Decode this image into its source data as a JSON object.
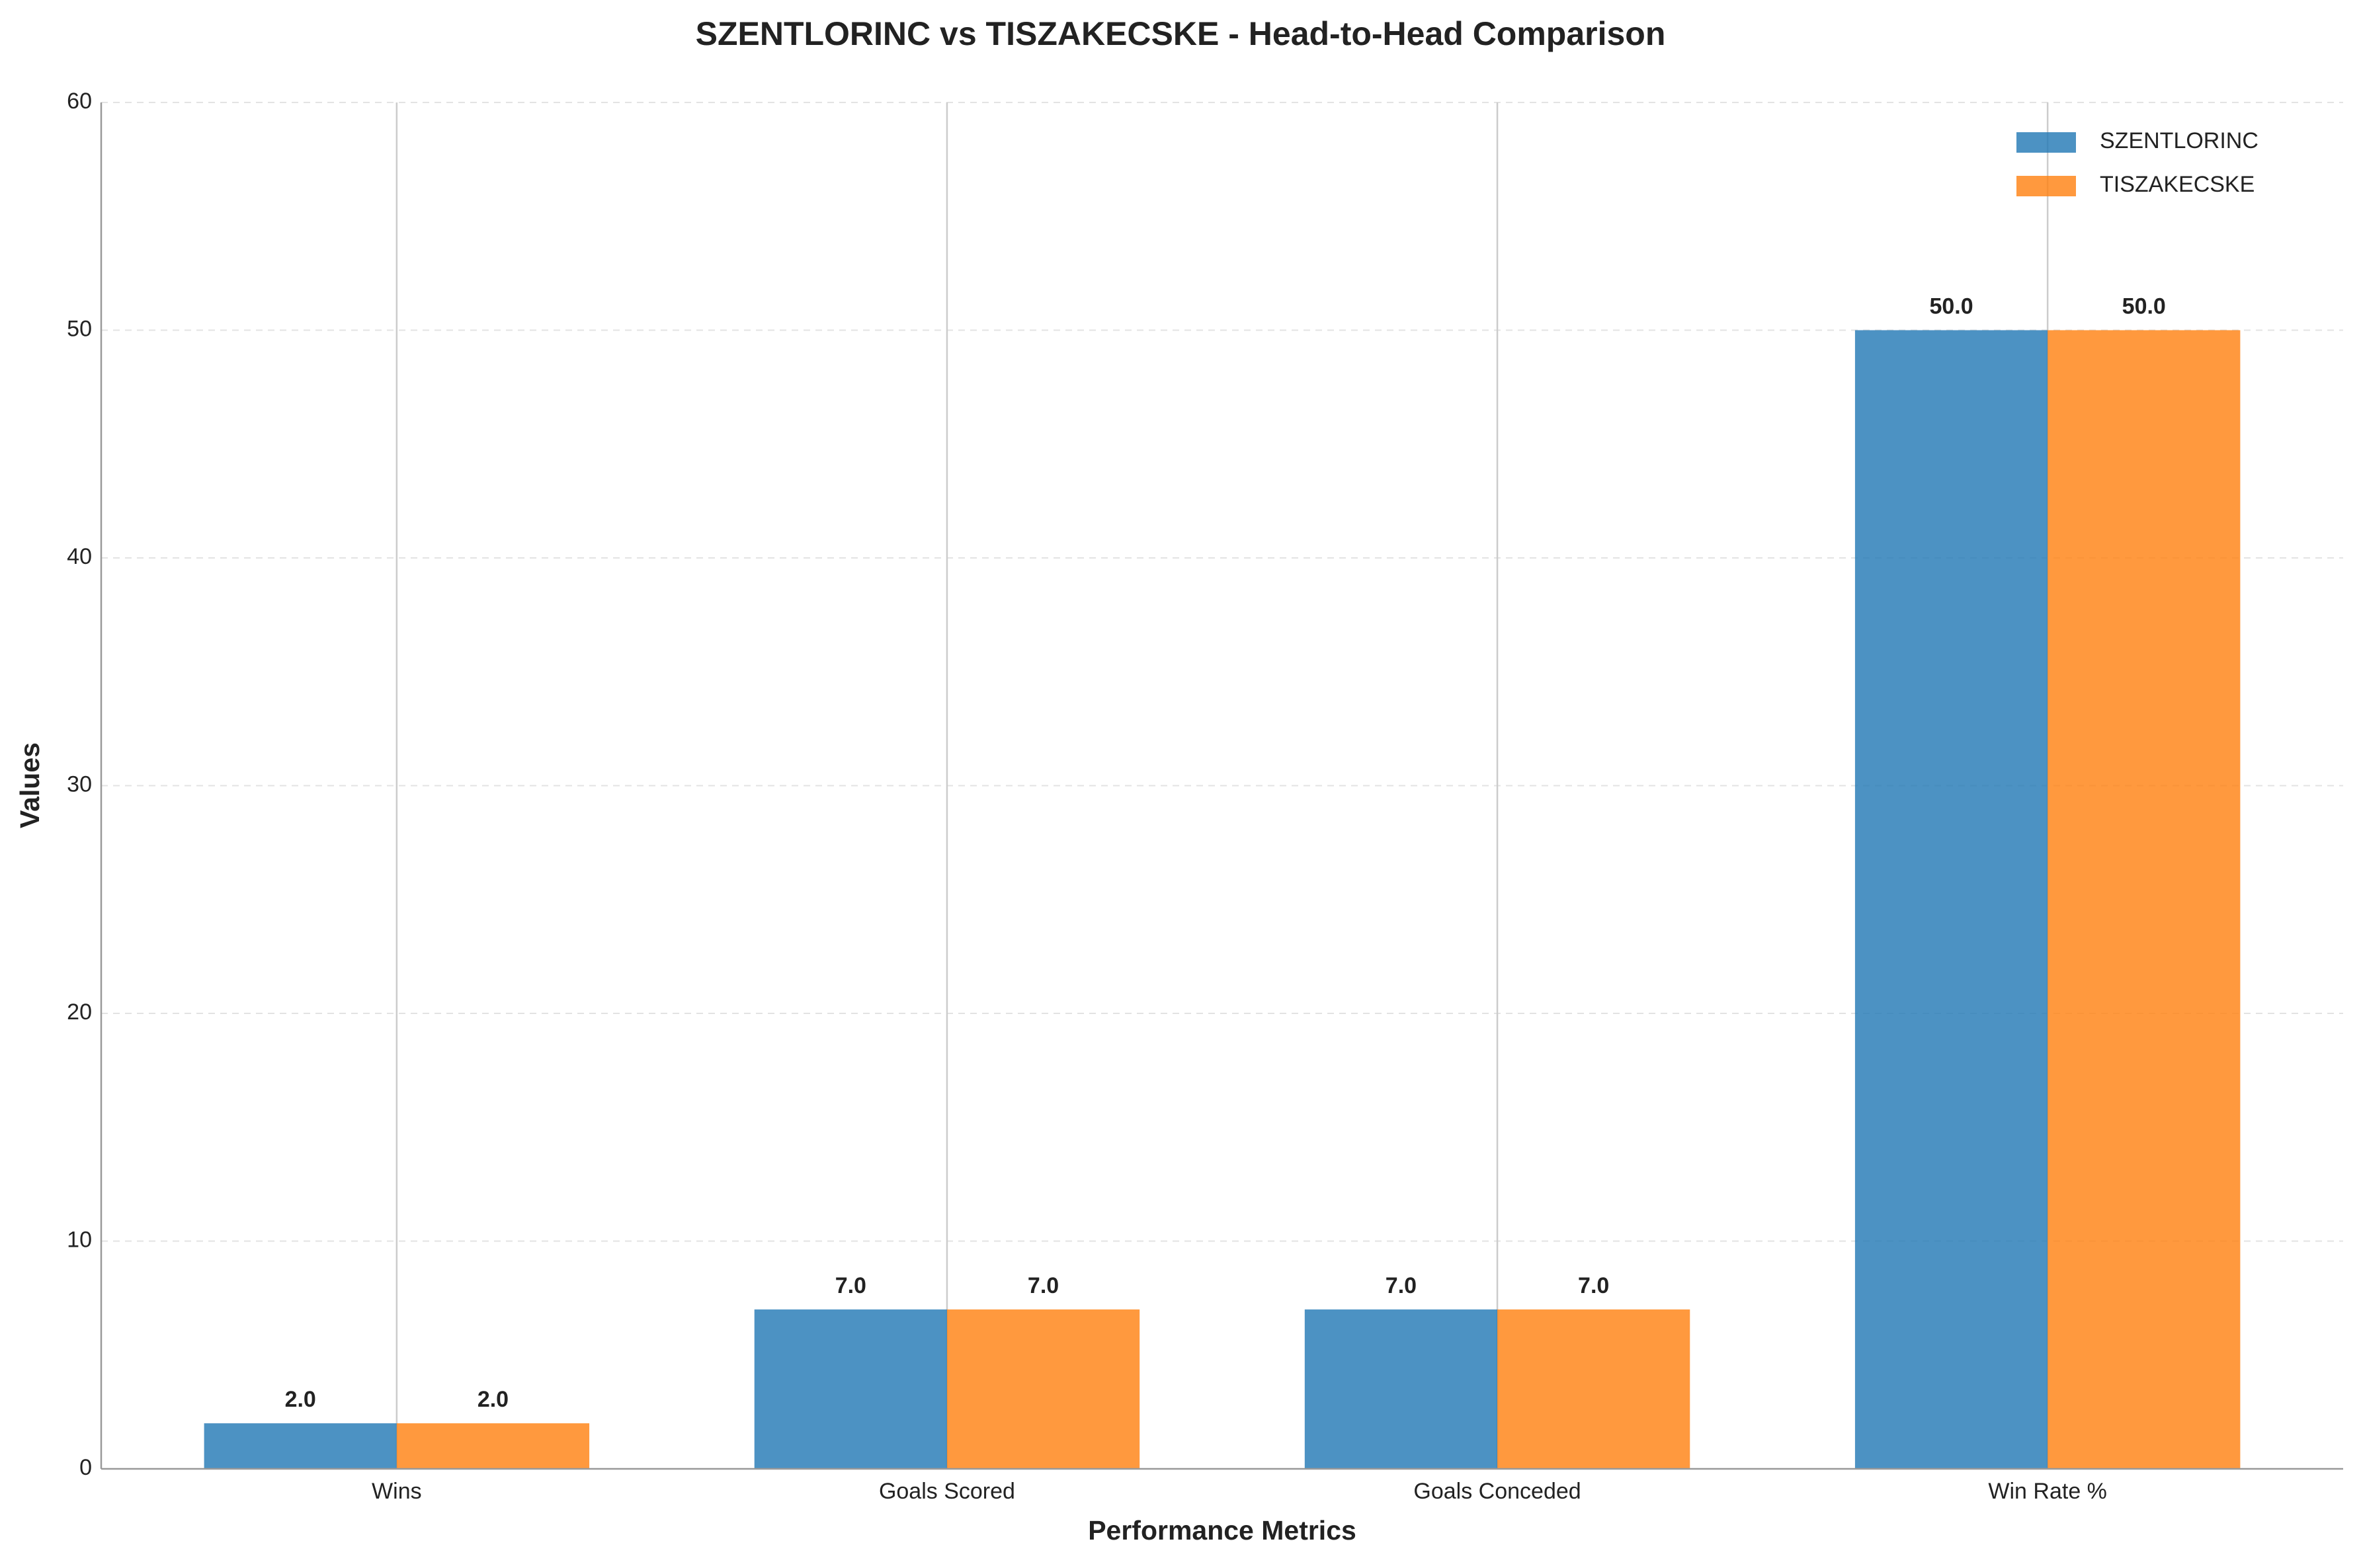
{
  "chart_data": {
    "type": "bar",
    "title": "SZENTLORINC vs TISZAKECSKE - Head-to-Head Comparison",
    "x_label": "Performance Metrics",
    "y_label": "Values",
    "categories": [
      "Wins",
      "Goals Scored",
      "Goals Conceded",
      "Win Rate %"
    ],
    "series": [
      {
        "name": "SZENTLORINC",
        "color": "#1f77b4",
        "values": [
          2,
          7,
          7,
          50
        ],
        "value_labels": [
          "2.0",
          "7.0",
          "7.0",
          "50.0"
        ]
      },
      {
        "name": "TISZAKECSKE",
        "color": "#ff7f0e",
        "values": [
          2,
          7,
          7,
          50
        ],
        "value_labels": [
          "2.0",
          "7.0",
          "7.0",
          "50.0"
        ]
      }
    ],
    "ylim": [
      0,
      60
    ],
    "yticks": [
      0,
      10,
      20,
      30,
      40,
      50,
      60
    ],
    "grid": true,
    "legend": "upper right"
  }
}
